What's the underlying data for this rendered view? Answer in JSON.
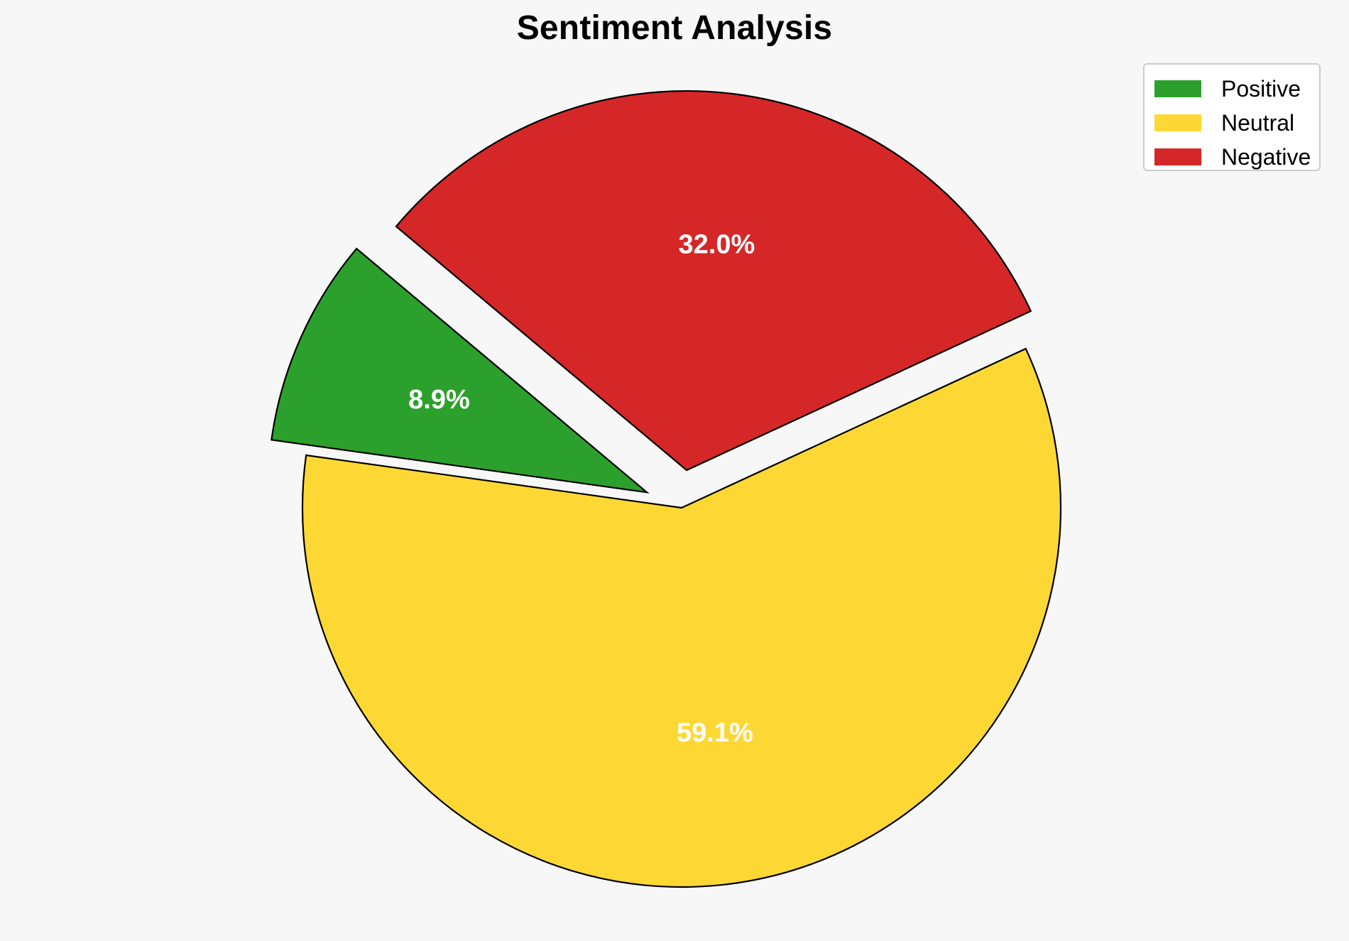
{
  "chart_data": {
    "type": "pie",
    "title": "Sentiment Analysis",
    "categories": [
      "Positive",
      "Neutral",
      "Negative"
    ],
    "values": [
      8.9,
      59.1,
      32.0
    ],
    "value_labels": [
      "8.9%",
      "59.1%",
      "32.0%"
    ],
    "colors": [
      "#2ca02c",
      "#fdd835",
      "#d62728"
    ],
    "exploded": [
      true,
      false,
      true
    ],
    "legend": {
      "placement": "top-right",
      "entries": [
        "Positive",
        "Neutral",
        "Negative"
      ]
    }
  }
}
